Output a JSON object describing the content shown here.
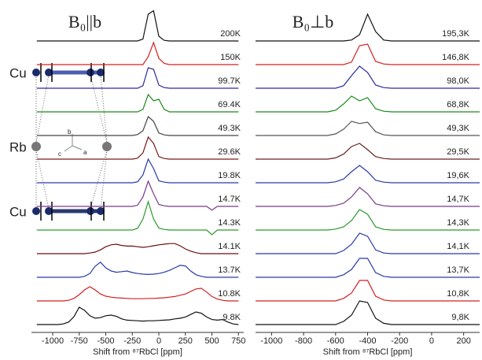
{
  "chart_data": [
    {
      "type": "line",
      "title": "B₀||b",
      "x_label": "Shift from ⁸⁷RbCl  [ppm]",
      "xlim": [
        -1200,
        800
      ],
      "xticks": [
        -1000,
        -750,
        -500,
        -250,
        0,
        250,
        500,
        750
      ],
      "x": [
        -1150,
        -1100,
        -1050,
        -1000,
        -950,
        -900,
        -850,
        -800,
        -750,
        -700,
        -650,
        -600,
        -550,
        -500,
        -450,
        -400,
        -350,
        -300,
        -250,
        -200,
        -150,
        -100,
        -50,
        0,
        50,
        100,
        150,
        200,
        250,
        300,
        350,
        400,
        450,
        500,
        550,
        600,
        650,
        700,
        750
      ],
      "series": [
        {
          "name": "200K",
          "color": "#111111",
          "values": [
            0,
            0,
            0,
            0,
            0,
            0,
            0,
            0,
            0,
            0,
            0,
            0,
            0,
            0,
            0,
            0,
            0,
            0,
            0,
            0,
            0.6,
            8.5,
            9.6,
            1.5,
            0.2,
            0,
            0,
            0,
            0,
            0,
            0,
            0,
            0,
            0,
            0,
            0,
            0,
            0,
            0
          ]
        },
        {
          "name": "150K",
          "color": "#d42020",
          "values": [
            0,
            0,
            0,
            0,
            0,
            0,
            0,
            0,
            0,
            0,
            0,
            0,
            0,
            0,
            0,
            0,
            0,
            0,
            0,
            0,
            0,
            2.5,
            7,
            2,
            0.4,
            0,
            0,
            0,
            0,
            0,
            0,
            0,
            0,
            0,
            0,
            0,
            0,
            0,
            0
          ]
        },
        {
          "name": "99.7K",
          "color": "#2a2aa0",
          "values": [
            0,
            0,
            0,
            0,
            0,
            0,
            0,
            0,
            0,
            0,
            0,
            0,
            0,
            0,
            0,
            0,
            0,
            0,
            0,
            0,
            0.8,
            6.5,
            6,
            1,
            0.2,
            0,
            0,
            0,
            0,
            0,
            0,
            0,
            0,
            0,
            0,
            0,
            0,
            0,
            0
          ]
        },
        {
          "name": "69.4K",
          "color": "#1a8a1a",
          "values": [
            0,
            0,
            0,
            0,
            0,
            0,
            0,
            0,
            0,
            0,
            0,
            0,
            0,
            0,
            0,
            0,
            0,
            0,
            0,
            0,
            0.8,
            5.5,
            3.5,
            4,
            0.8,
            0,
            0,
            0,
            0,
            0,
            0,
            0,
            0,
            0,
            0,
            0,
            0,
            0,
            0
          ]
        },
        {
          "name": "49.3K",
          "color": "#444444",
          "values": [
            0,
            0,
            0,
            0,
            0,
            0,
            0,
            0,
            0,
            0,
            0,
            0,
            0,
            0,
            0,
            0,
            0,
            0,
            0,
            0.3,
            1.5,
            6,
            4.5,
            0.8,
            0.2,
            0,
            0,
            0,
            0,
            0,
            0,
            0,
            0,
            0,
            0,
            0,
            0,
            0,
            0
          ]
        },
        {
          "name": "29.6K",
          "color": "#7a1a1a",
          "values": [
            0,
            0,
            0,
            0,
            0,
            0,
            0,
            0,
            0,
            0,
            0,
            0,
            0,
            0,
            0,
            0,
            0,
            0,
            0,
            0.3,
            2,
            7,
            5,
            0.8,
            0.2,
            0,
            0,
            0,
            0,
            0,
            0,
            0,
            0,
            0,
            0,
            0,
            0,
            0,
            0
          ]
        },
        {
          "name": "19.8K",
          "color": "#2a3aaa",
          "values": [
            0,
            0,
            0,
            0,
            0,
            0,
            0,
            0,
            0,
            0,
            0,
            0,
            0,
            0,
            0,
            0,
            0,
            0,
            0,
            0.3,
            2.5,
            7.5,
            4.5,
            0.6,
            0.2,
            0,
            0,
            0,
            0,
            0,
            0,
            0,
            0,
            0,
            0,
            0,
            0,
            0,
            0
          ]
        },
        {
          "name": "14.7K",
          "color": "#7a3a8a",
          "values": [
            0,
            0,
            0,
            0,
            0,
            0,
            0,
            0,
            0,
            0,
            0,
            0,
            0,
            0,
            0,
            0,
            0,
            0,
            0,
            0.4,
            3,
            8,
            4,
            0.6,
            0.2,
            0,
            0,
            0,
            0,
            0,
            0,
            0,
            0,
            -1.2,
            0,
            0,
            0,
            0,
            0
          ]
        },
        {
          "name": "14.3K",
          "color": "#2a9a2a",
          "values": [
            0,
            0,
            0,
            0,
            0,
            0,
            0,
            0,
            0,
            0,
            0,
            0,
            0,
            0,
            0,
            0,
            0,
            0,
            0,
            0.5,
            3.5,
            9,
            3.5,
            0.6,
            0.2,
            0,
            0,
            0,
            0,
            0,
            0,
            0,
            0,
            -1.5,
            0,
            0,
            0,
            0,
            0
          ]
        },
        {
          "name": "14.1K",
          "color": "#6a1010",
          "values": [
            0,
            0,
            0,
            0,
            0,
            0,
            0,
            0,
            0,
            0,
            0.2,
            0.5,
            1.2,
            2.2,
            2.8,
            3,
            2.6,
            2.4,
            2.4,
            2.2,
            2,
            2.2,
            2.5,
            2.8,
            3,
            3.2,
            3.2,
            2.5,
            1.5,
            0.8,
            0.3,
            0,
            0,
            0,
            0,
            0,
            0,
            0,
            0
          ]
        },
        {
          "name": "13.7K",
          "color": "#2a3aa8",
          "values": [
            0,
            0,
            0,
            0,
            0,
            0,
            0,
            0,
            0,
            0.3,
            1.2,
            3.5,
            4.8,
            3,
            2,
            1.6,
            1.8,
            2,
            1.5,
            1.2,
            1,
            0.9,
            1,
            1.2,
            1.6,
            2.2,
            3,
            3.8,
            3.6,
            2,
            0.8,
            0.3,
            0,
            0,
            0,
            0,
            0,
            0,
            0
          ]
        },
        {
          "name": "10.8K",
          "color": "#d42020",
          "values": [
            0,
            0,
            0,
            0,
            0,
            0,
            0.2,
            0.8,
            2,
            3.5,
            4.5,
            3.5,
            2.2,
            1.5,
            1.2,
            1,
            0.9,
            0.8,
            0.7,
            0.7,
            0.7,
            0.8,
            0.8,
            0.9,
            1,
            1.2,
            1.4,
            1.8,
            2.2,
            3,
            3.8,
            4,
            2.8,
            1.4,
            0.6,
            0.2,
            0,
            0,
            0
          ]
        },
        {
          "name": "9.8K",
          "color": "#111111",
          "values": [
            0,
            0,
            0,
            0,
            0,
            0.2,
            0.8,
            2.5,
            5.5,
            4.5,
            2.8,
            2,
            2.2,
            2.8,
            3,
            2.6,
            1.8,
            1.4,
            1.3,
            1.2,
            1.1,
            1.2,
            1.2,
            1.3,
            1.4,
            1.5,
            1.8,
            2,
            2.4,
            3.2,
            4,
            3.6,
            2.4,
            1.6,
            1.4,
            1.6,
            0.8,
            0.2,
            0
          ]
        }
      ],
      "inset": {
        "atom_top": "Cu",
        "atom_middle": "Rb",
        "atom_bottom": "Cu",
        "axis_b": "b",
        "axis_c": "c",
        "axis_a": "a"
      }
    },
    {
      "type": "line",
      "title": "B₀⊥b",
      "x_label": "Shift from ⁸⁷RbCl  [ppm]",
      "xlim": [
        -1100,
        300
      ],
      "xticks": [
        -1000,
        -800,
        -600,
        -400,
        -200,
        0,
        200
      ],
      "x": [
        -1100,
        -1050,
        -1000,
        -950,
        -900,
        -850,
        -800,
        -750,
        -700,
        -650,
        -600,
        -550,
        -500,
        -450,
        -400,
        -350,
        -300,
        -250,
        -200,
        -150,
        -100,
        -50,
        0,
        50,
        100,
        150,
        200,
        250,
        300
      ],
      "series": [
        {
          "name": "195,3K",
          "color": "#111111",
          "values": [
            0,
            0,
            0,
            0,
            0,
            0,
            0,
            0,
            0,
            0,
            0,
            0,
            0.3,
            2,
            8.5,
            3,
            0.3,
            0,
            0,
            0,
            0,
            0,
            0,
            0,
            0,
            0,
            0,
            0,
            0
          ]
        },
        {
          "name": "146,8K",
          "color": "#d42020",
          "values": [
            0,
            0,
            0,
            0,
            0,
            0,
            0,
            0,
            0,
            0,
            0,
            0,
            0.8,
            6,
            6.5,
            1,
            0.2,
            0,
            0,
            0,
            0,
            0,
            0,
            0,
            0,
            0,
            0,
            0,
            0
          ]
        },
        {
          "name": "98,0K",
          "color": "#2a2aa0",
          "values": [
            0,
            0,
            0,
            0,
            0,
            0,
            0,
            0,
            0,
            0,
            0,
            0.8,
            4,
            7,
            5,
            1,
            0.2,
            0,
            0,
            0,
            0,
            0,
            0,
            0,
            0,
            0,
            0,
            0,
            0
          ]
        },
        {
          "name": "68,8K",
          "color": "#1a8a1a",
          "values": [
            0,
            0,
            0,
            0,
            0,
            0,
            0,
            0,
            0,
            0,
            0.5,
            2.5,
            5,
            3.5,
            4.5,
            1,
            0.2,
            0,
            0,
            0,
            0,
            0,
            0,
            0,
            0,
            0,
            0,
            0,
            0
          ]
        },
        {
          "name": "49,3K",
          "color": "#555555",
          "values": [
            0,
            0,
            0,
            0,
            0,
            0,
            0,
            0,
            0,
            0,
            0.5,
            2,
            4.5,
            3.8,
            4.2,
            1.2,
            0.2,
            0,
            0,
            0,
            0,
            0,
            0,
            0,
            0,
            0,
            0,
            0,
            0
          ]
        },
        {
          "name": "29,5K",
          "color": "#6a2020",
          "values": [
            0,
            0,
            0,
            0,
            0,
            0,
            0,
            0,
            0,
            0,
            0.4,
            1.6,
            4,
            5,
            3,
            0.8,
            0.2,
            0,
            0,
            0,
            0,
            0,
            0,
            0,
            0,
            0,
            0,
            0,
            0
          ]
        },
        {
          "name": "19,6K",
          "color": "#2a3aaa",
          "values": [
            0,
            0,
            0,
            0,
            0,
            0,
            0,
            0,
            0,
            0,
            0.3,
            1.2,
            3.5,
            5.5,
            3.5,
            0.8,
            0.2,
            0,
            0,
            0,
            0,
            0,
            0,
            0,
            0,
            0,
            0,
            0,
            0
          ]
        },
        {
          "name": "14,7K",
          "color": "#7a3a8a",
          "values": [
            0,
            0,
            0,
            0,
            0,
            0,
            0,
            0,
            0,
            0,
            0.3,
            1,
            3,
            6,
            4,
            0.8,
            0.2,
            0,
            0,
            0,
            0,
            0,
            0,
            0,
            0,
            0,
            0,
            0,
            0
          ]
        },
        {
          "name": "14,3K",
          "color": "#2a9a2a",
          "values": [
            0,
            0,
            0,
            0,
            0,
            0,
            0,
            0,
            0,
            0,
            0.3,
            1,
            3,
            6.5,
            5,
            1,
            0.2,
            0,
            0,
            0,
            0,
            0,
            0,
            0,
            0,
            0,
            0,
            0,
            0
          ]
        },
        {
          "name": "14,1K",
          "color": "#2a3aa8",
          "values": [
            0,
            0,
            0,
            0,
            0,
            0,
            0,
            0,
            0,
            0,
            0,
            1,
            3,
            6.5,
            5.5,
            1.2,
            0.2,
            0,
            0,
            0,
            0,
            0,
            0,
            0,
            0,
            0,
            0,
            0,
            0
          ]
        },
        {
          "name": "13,7K",
          "color": "#2a3aa8",
          "values": [
            0,
            0,
            0,
            0,
            0,
            0,
            0,
            0,
            0,
            0,
            0,
            0.8,
            2.5,
            6,
            6,
            1.5,
            0.3,
            0,
            0,
            0,
            0,
            0,
            0,
            0,
            0,
            0,
            0,
            0,
            0
          ]
        },
        {
          "name": "10,8K",
          "color": "#d42020",
          "values": [
            0,
            0,
            0,
            0,
            0,
            0,
            0,
            0,
            0,
            0,
            0,
            0.8,
            2.5,
            6.5,
            6.5,
            1.5,
            0.3,
            0,
            0,
            0,
            0,
            0,
            0,
            0,
            0,
            0,
            0,
            0,
            0
          ]
        },
        {
          "name": "9,8K",
          "color": "#111111",
          "values": [
            0,
            0,
            0,
            0,
            0,
            0,
            0,
            0,
            0,
            0,
            0,
            1,
            3,
            7.5,
            7,
            2,
            0.4,
            0,
            0,
            0,
            0,
            0,
            0,
            0,
            0,
            0,
            0,
            0,
            0
          ]
        }
      ]
    }
  ]
}
